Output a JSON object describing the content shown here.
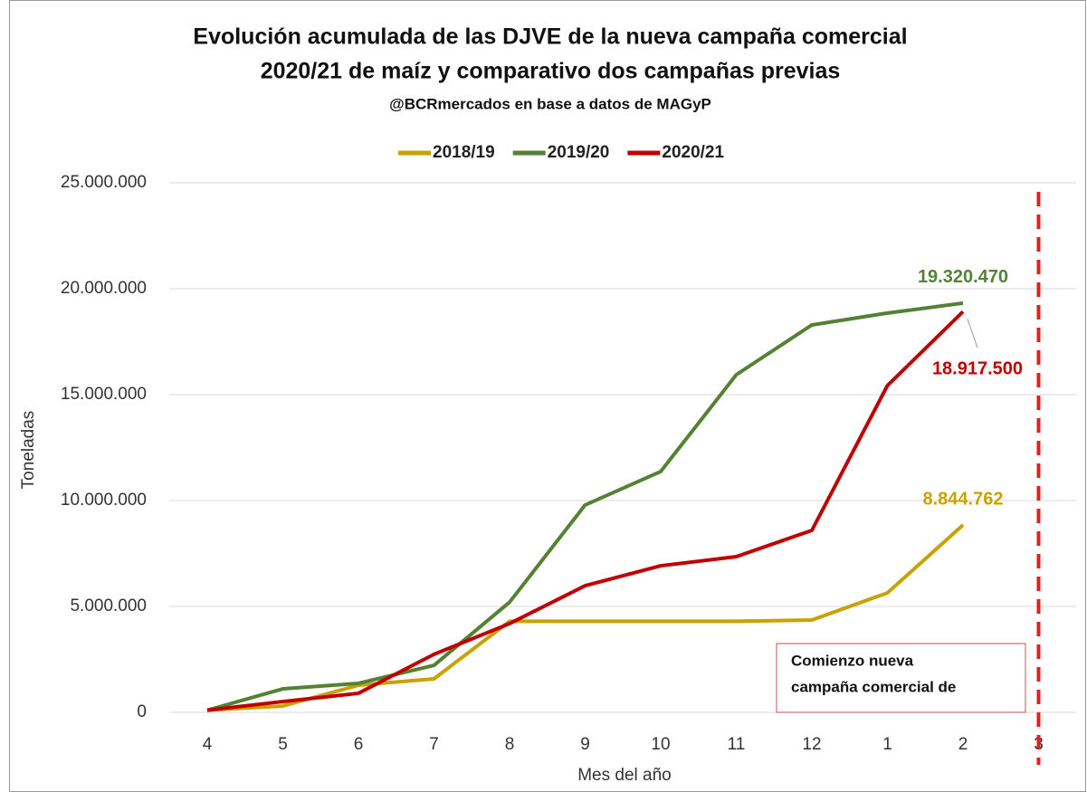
{
  "chart_data": {
    "type": "line",
    "title": [
      "Evolución acumulada de las DJVE de la nueva campaña comercial",
      "2020/21 de maíz y comparativo dos campañas previas"
    ],
    "subtitle": "@BCRmercados en base a datos de MAGyP",
    "y_label": "Toneladas",
    "x_label": "Mes del año",
    "categories": [
      4,
      5,
      6,
      7,
      8,
      9,
      10,
      11,
      12,
      1,
      2,
      3
    ],
    "series": [
      {
        "name": "2018/19",
        "color": "#c9a100",
        "values": [
          100000,
          300000,
          1280000,
          1580000,
          4300000,
          4300000,
          4300000,
          4300000,
          4360000,
          5640000,
          8844762,
          null
        ],
        "value_labels": [
          null,
          null,
          null,
          null,
          null,
          null,
          null,
          null,
          null,
          null,
          "8.844.762",
          null
        ]
      },
      {
        "name": "2019/20",
        "color": "#548235",
        "values": [
          100000,
          1110000,
          1370000,
          2220000,
          5200000,
          9790000,
          11370000,
          15940000,
          18290000,
          18850000,
          19320470,
          null
        ],
        "value_labels": [
          null,
          null,
          null,
          null,
          null,
          null,
          null,
          null,
          null,
          null,
          "19.320.470",
          null
        ]
      },
      {
        "name": "2020/21",
        "color": "#c00000",
        "values": [
          100000,
          510000,
          900000,
          2740000,
          4190000,
          5980000,
          6920000,
          7350000,
          8590000,
          15430000,
          18917500,
          null
        ],
        "value_labels": [
          null,
          null,
          null,
          null,
          null,
          null,
          null,
          null,
          null,
          null,
          "18.917.500",
          null
        ]
      }
    ],
    "ylim": [
      0,
      25000000
    ],
    "yticks": [
      0,
      {
        "value": 5000000,
        "label": "5.000.000"
      },
      {
        "value": 10000000,
        "label": "10.000.000"
      },
      {
        "value": 15000000,
        "label": "15.000.000"
      },
      {
        "value": 20000000,
        "label": "20.000.000"
      },
      {
        "value": 25000000,
        "label": "25.000.000"
      }
    ],
    "grid": true,
    "legend": "top",
    "vline": {
      "x": 3,
      "color": "#e02020"
    },
    "annotation": [
      "Comienzo nueva",
      "campaña comercial de"
    ]
  }
}
